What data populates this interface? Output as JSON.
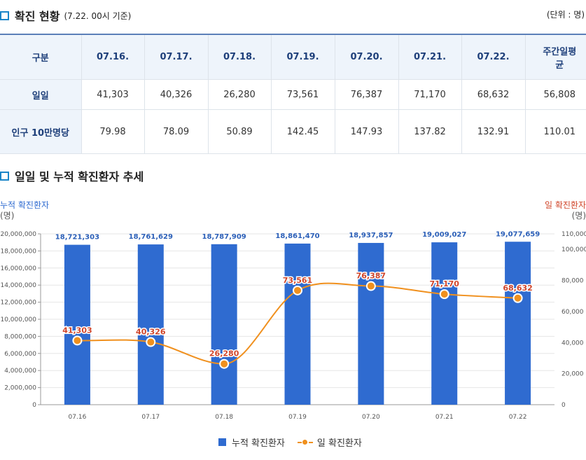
{
  "status_section": {
    "title": "확진 현황",
    "subtitle": "(7.22. 00시 기준)",
    "unit": "(단위 : 명)"
  },
  "table": {
    "header": [
      "구분",
      "07.16.",
      "07.17.",
      "07.18.",
      "07.19.",
      "07.20.",
      "07.21.",
      "07.22.",
      "주간일평균"
    ],
    "rows": [
      {
        "label": "일일",
        "values": [
          "41,303",
          "40,326",
          "26,280",
          "73,561",
          "76,387",
          "71,170",
          "68,632",
          "56,808"
        ]
      },
      {
        "label": "인구 10만명당",
        "values": [
          "79.98",
          "78.09",
          "50.89",
          "142.45",
          "147.93",
          "137.82",
          "132.91",
          "110.01"
        ]
      }
    ]
  },
  "trend_section": {
    "title": "일일 및 누적 확진환자 추세"
  },
  "colors": {
    "bar": "#2f6bd0",
    "line": "#f0901e",
    "left_axis_title": "#2f6bd0",
    "right_axis_title": "#d0452a"
  },
  "chart_data": {
    "type": "bar+line",
    "categories": [
      "07.16",
      "07.17",
      "07.18",
      "07.19",
      "07.20",
      "07.21",
      "07.22"
    ],
    "series": [
      {
        "name": "누적 확진환자",
        "type": "bar",
        "axis": "left",
        "values": [
          18721303,
          18761629,
          18787909,
          18861470,
          18937857,
          19009027,
          19077659
        ],
        "labels": [
          "18,721,303",
          "18,761,629",
          "18,787,909",
          "18,861,470",
          "18,937,857",
          "19,009,027",
          "19,077,659"
        ]
      },
      {
        "name": "일 확진환자",
        "type": "line",
        "axis": "right",
        "values": [
          41303,
          40326,
          26280,
          73561,
          76387,
          71170,
          68632
        ],
        "labels": [
          "41,303",
          "40,326",
          "26,280",
          "73,561",
          "76,387",
          "71,170",
          "68,632"
        ]
      }
    ],
    "left_axis": {
      "title": "누적 확진환자",
      "unit": "(명)",
      "ylim": [
        0,
        20000000
      ],
      "ticks": [
        0,
        2000000,
        4000000,
        6000000,
        8000000,
        10000000,
        12000000,
        14000000,
        16000000,
        18000000,
        20000000
      ],
      "tick_labels": [
        "0",
        "2,000,000",
        "4,000,000",
        "6,000,000",
        "8,000,000",
        "10,000,000",
        "12,000,000",
        "14,000,000",
        "16,000,000",
        "18,000,000",
        "20,000,000"
      ]
    },
    "right_axis": {
      "title": "일 확진환자",
      "unit": "(명)",
      "ylim": [
        0,
        110000
      ],
      "ticks": [
        0,
        20000,
        40000,
        60000,
        80000,
        100000,
        110000
      ],
      "tick_labels": [
        "0",
        "20,000",
        "40,000",
        "60,000",
        "80,000",
        "100,000",
        "110,000"
      ]
    },
    "grid": true,
    "legend_position": "bottom"
  }
}
